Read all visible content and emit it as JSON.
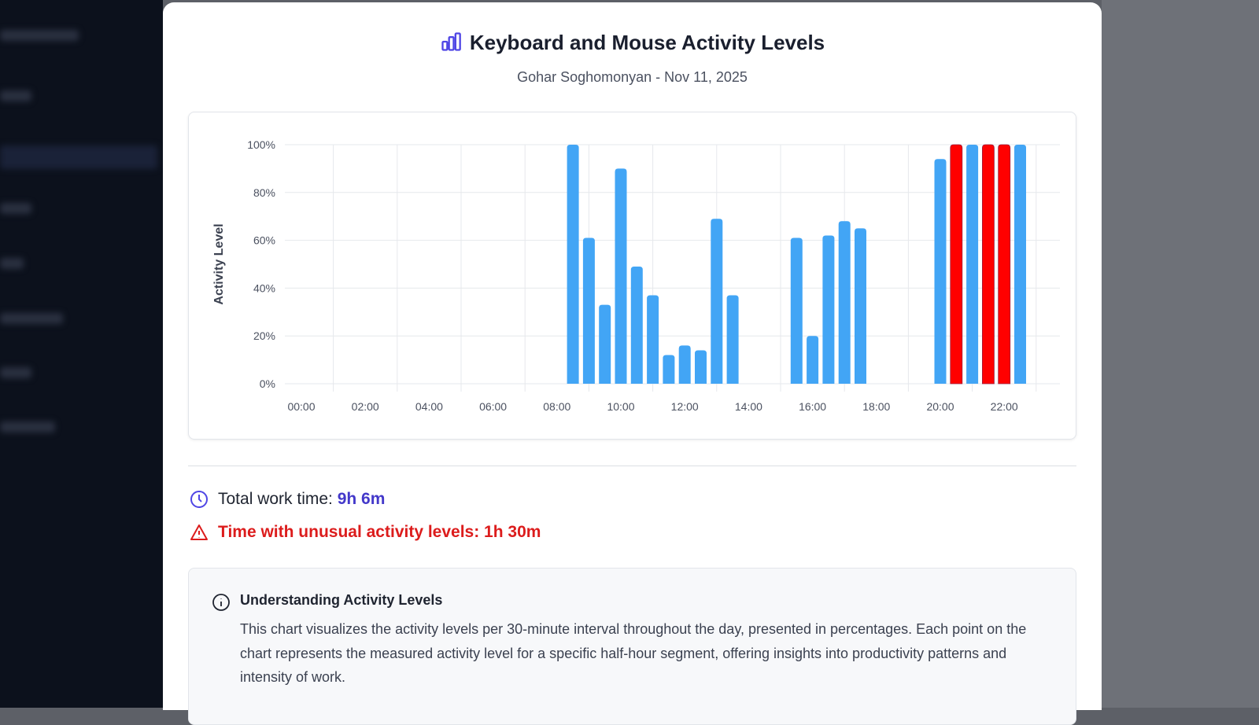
{
  "modal": {
    "title": "Keyboard and Mouse Activity Levels",
    "subtitle": "Gohar Soghomonyan - Nov 11, 2025",
    "title_icon": "bar-chart-icon"
  },
  "chart_data": {
    "type": "bar",
    "title": "",
    "xlabel": "",
    "ylabel": "Activity Level",
    "ylim": [
      0,
      100
    ],
    "yticks": [
      "0%",
      "20%",
      "40%",
      "60%",
      "80%",
      "100%"
    ],
    "xticks": [
      "00:00",
      "02:00",
      "04:00",
      "06:00",
      "08:00",
      "10:00",
      "12:00",
      "14:00",
      "16:00",
      "18:00",
      "20:00",
      "22:00"
    ],
    "grid": true,
    "colors": {
      "normal": "#42a5f5",
      "unusual": "#ff0000"
    },
    "bars": [
      {
        "time": "08:30",
        "value": 100,
        "unusual": false
      },
      {
        "time": "09:00",
        "value": 61,
        "unusual": false
      },
      {
        "time": "09:30",
        "value": 33,
        "unusual": false
      },
      {
        "time": "10:00",
        "value": 90,
        "unusual": false
      },
      {
        "time": "10:30",
        "value": 49,
        "unusual": false
      },
      {
        "time": "11:00",
        "value": 37,
        "unusual": false
      },
      {
        "time": "11:30",
        "value": 12,
        "unusual": false
      },
      {
        "time": "12:00",
        "value": 16,
        "unusual": false
      },
      {
        "time": "12:30",
        "value": 14,
        "unusual": false
      },
      {
        "time": "13:00",
        "value": 69,
        "unusual": false
      },
      {
        "time": "13:30",
        "value": 37,
        "unusual": false
      },
      {
        "time": "15:30",
        "value": 61,
        "unusual": false
      },
      {
        "time": "16:00",
        "value": 20,
        "unusual": false
      },
      {
        "time": "16:30",
        "value": 62,
        "unusual": false
      },
      {
        "time": "17:00",
        "value": 68,
        "unusual": false
      },
      {
        "time": "17:30",
        "value": 65,
        "unusual": false
      },
      {
        "time": "20:00",
        "value": 94,
        "unusual": false
      },
      {
        "time": "20:30",
        "value": 100,
        "unusual": true
      },
      {
        "time": "21:00",
        "value": 100,
        "unusual": false
      },
      {
        "time": "21:30",
        "value": 100,
        "unusual": true
      },
      {
        "time": "22:00",
        "value": 100,
        "unusual": true
      },
      {
        "time": "22:30",
        "value": 100,
        "unusual": false
      }
    ]
  },
  "stats": {
    "total_label": "Total work time:",
    "total_value": "9h 6m",
    "unusual_label": "Time with unusual activity levels: 1h 30m"
  },
  "info": {
    "title": "Understanding Activity Levels",
    "text": "This chart visualizes the activity levels per 30-minute interval throughout the day, presented in percentages. Each point on the chart represents the measured activity level for a specific half-hour segment, offering insights into productivity patterns and intensity of work."
  }
}
